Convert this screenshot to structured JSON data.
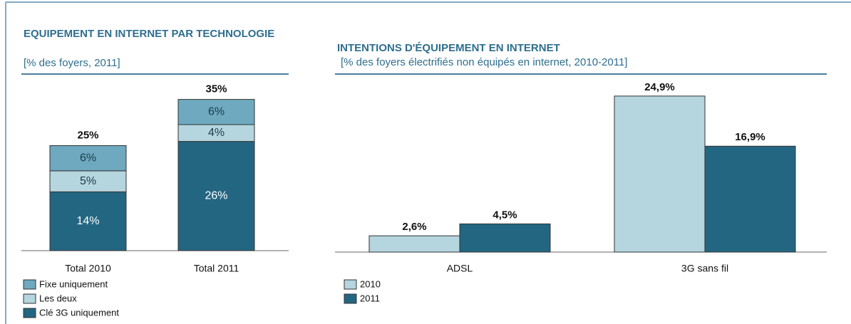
{
  "chart_data": [
    {
      "type": "stacked_bar",
      "title": "EQUIPEMENT EN INTERNET PAR TECHNOLOGIE",
      "subtitle": "[% des foyers, 2011]",
      "categories": [
        "Total 2010",
        "Total 2011"
      ],
      "series": [
        {
          "name": "Clé 3G uniquement",
          "color": "#236682",
          "values": [
            14,
            26
          ],
          "value_labels": [
            "14%",
            "26%"
          ]
        },
        {
          "name": "Les deux",
          "color": "#b5d5df",
          "values": [
            5,
            4
          ],
          "value_labels": [
            "5%",
            "4%"
          ]
        },
        {
          "name": "Fixe uniquement",
          "color": "#6ea9bf",
          "values": [
            6,
            6
          ],
          "value_labels": [
            "6%",
            "6%"
          ]
        }
      ],
      "totals": [
        25,
        35
      ],
      "total_labels": [
        "25%",
        "35%"
      ]
    },
    {
      "type": "grouped_bar",
      "title": "INTENTIONS D'ÉQUIPEMENT EN INTERNET",
      "subtitle": "[% des foyers électrifiés non équipés en internet, 2010-2011]",
      "categories": [
        "ADSL",
        "3G sans fil"
      ],
      "series": [
        {
          "name": "2010",
          "color": "#b5d5df",
          "values": [
            2.6,
            24.9
          ],
          "value_labels": [
            "2,6%",
            "24,9%"
          ]
        },
        {
          "name": "2011",
          "color": "#236682",
          "values": [
            4.5,
            16.9
          ],
          "value_labels": [
            "4,5%",
            "16,9%"
          ]
        }
      ]
    }
  ]
}
